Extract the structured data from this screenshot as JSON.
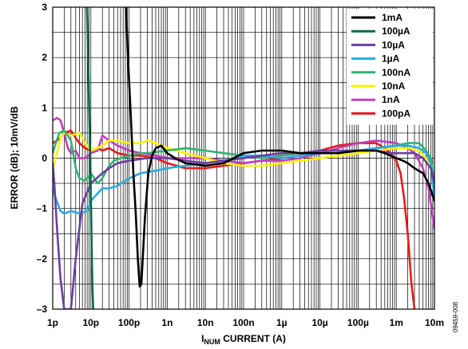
{
  "figure_id": "09459-008",
  "chart_data": {
    "type": "line",
    "xlabel": "I",
    "xlabel_sub": "NUM",
    "xlabel_rest": " CURRENT (A)",
    "ylabel": "ERROR (dB); 10mV/dB",
    "x_scale": "log",
    "xlim": [
      1e-12,
      0.01
    ],
    "ylim": [
      -3,
      3
    ],
    "x_ticks": [
      {
        "value": 1e-12,
        "label": "1p"
      },
      {
        "value": 1e-11,
        "label": "10p"
      },
      {
        "value": 1e-10,
        "label": "100p"
      },
      {
        "value": 1e-09,
        "label": "1n"
      },
      {
        "value": 1e-08,
        "label": "10n"
      },
      {
        "value": 1e-07,
        "label": "100n"
      },
      {
        "value": 1e-06,
        "label": "1µ"
      },
      {
        "value": 1e-05,
        "label": "10µ"
      },
      {
        "value": 0.0001,
        "label": "100µ"
      },
      {
        "value": 0.001,
        "label": "1m"
      },
      {
        "value": 0.01,
        "label": "10m"
      }
    ],
    "y_ticks": [
      {
        "value": 3,
        "label": "3"
      },
      {
        "value": 2,
        "label": "2"
      },
      {
        "value": 1,
        "label": "1"
      },
      {
        "value": 0,
        "label": "0"
      },
      {
        "value": -1,
        "label": "–1"
      },
      {
        "value": -2,
        "label": "–2"
      },
      {
        "value": -3,
        "label": "–3"
      }
    ],
    "grid": true,
    "legend_position": "top-right",
    "series": [
      {
        "name": "1mA",
        "color": "#000000",
        "x": [
          8.3e-11,
          9.5e-11,
          1.1e-10,
          1.3e-10,
          1.5e-10,
          1.7e-10,
          1.9e-10,
          2.1e-10,
          2.6e-10,
          3.2e-10,
          4e-10,
          5e-10,
          7e-10,
          1e-09,
          1.6e-09,
          3e-09,
          1e-08,
          3e-08,
          1e-07,
          3e-07,
          1e-06,
          3e-06,
          1e-05,
          3e-05,
          0.0001,
          0.0002,
          0.0003,
          0.0005,
          0.0007,
          0.001,
          0.0015,
          0.002,
          0.003,
          0.005,
          0.007,
          0.01
        ],
        "y": [
          3.0,
          1.9,
          0.9,
          -0.3,
          -1.1,
          -2.0,
          -2.55,
          -2.5,
          -1.2,
          -0.3,
          0.05,
          0.2,
          0.25,
          0.1,
          0.0,
          -0.1,
          -0.15,
          -0.1,
          0.1,
          0.15,
          0.15,
          0.1,
          0.1,
          0.1,
          0.15,
          0.15,
          0.15,
          0.1,
          0.05,
          0.0,
          -0.05,
          -0.1,
          -0.2,
          -0.3,
          -0.5,
          -0.85
        ]
      },
      {
        "name": "100µA",
        "color": "#006b3f",
        "x": [
          7.9e-12,
          8.5e-12,
          9e-12,
          9.6e-12,
          1.01e-11,
          1.06e-11,
          1.1e-11,
          1.15e-11
        ],
        "y": [
          3.0,
          2.0,
          1.0,
          0.0,
          -1.0,
          -2.0,
          -2.6,
          -3.0
        ]
      },
      {
        "name": "10µA",
        "color": "#6b3fa0",
        "x": [
          1e-12,
          1.1e-12,
          1.3e-12,
          1.6e-12,
          2e-12,
          3e-12,
          4e-12,
          6e-12,
          1e-11,
          2e-11,
          3e-11,
          5e-11,
          1e-10,
          3e-10,
          1e-09,
          3e-09,
          1e-08,
          3e-08,
          1e-07,
          3e-07,
          1e-06,
          3e-06,
          1e-05,
          3e-05,
          0.0001,
          0.0003,
          0.0007,
          0.001,
          0.002,
          0.003,
          0.005,
          0.008,
          0.01
        ],
        "y": [
          -0.1,
          -0.5,
          -1.4,
          -2.4,
          -3.0,
          -3.0,
          -2.0,
          -0.9,
          -0.5,
          -0.3,
          -0.2,
          -0.1,
          -0.05,
          0.0,
          0.0,
          -0.05,
          -0.1,
          -0.05,
          0.0,
          0.05,
          0.1,
          0.1,
          0.15,
          0.15,
          0.15,
          0.15,
          0.1,
          0.1,
          0.1,
          0.1,
          0.0,
          -0.2,
          -0.5
        ]
      },
      {
        "name": "1µA",
        "color": "#29abe2",
        "x": [
          1e-12,
          1.2e-12,
          1.6e-12,
          2e-12,
          3e-12,
          5e-12,
          8e-12,
          1e-11,
          1.5e-11,
          2e-11,
          3e-11,
          5e-11,
          1e-10,
          2e-10,
          5e-10,
          1e-09,
          3e-09,
          1e-08,
          3e-08,
          1e-07,
          3e-07,
          1e-06,
          3e-06,
          1e-05,
          3e-05,
          0.0001,
          0.0003,
          0.001,
          0.002,
          0.004,
          0.006,
          0.008,
          0.01
        ],
        "y": [
          -0.6,
          -0.8,
          -1.05,
          -1.1,
          -1.05,
          -1.1,
          -1.05,
          -0.85,
          -0.7,
          -0.6,
          -0.6,
          -0.55,
          -0.4,
          -0.3,
          -0.25,
          -0.2,
          -0.15,
          -0.1,
          -0.05,
          0.05,
          0.05,
          0.0,
          0.05,
          0.1,
          0.1,
          0.15,
          0.2,
          0.25,
          0.25,
          0.2,
          0.1,
          -0.1,
          -0.8
        ]
      },
      {
        "name": "100nA",
        "color": "#2bb673",
        "x": [
          1e-12,
          1.2e-12,
          1.5e-12,
          2e-12,
          3e-12,
          4e-12,
          5e-12,
          7e-12,
          1e-11,
          1.5e-11,
          2e-11,
          3e-11,
          4e-11,
          6e-11,
          1e-10,
          2e-10,
          3e-10,
          1e-09,
          3e-09,
          1e-08,
          3e-08,
          1e-07,
          3e-07,
          1e-06,
          3e-06,
          1e-05,
          3e-05,
          0.0001,
          0.0003,
          0.001,
          0.002,
          0.004,
          0.006,
          0.008,
          0.01
        ],
        "y": [
          0.1,
          0.3,
          0.5,
          0.55,
          0.35,
          -0.2,
          -0.4,
          -0.45,
          -0.3,
          -0.5,
          -0.4,
          -0.15,
          -0.05,
          0.0,
          0.05,
          0.1,
          0.1,
          0.15,
          0.2,
          0.15,
          0.1,
          0.05,
          0.0,
          0.05,
          0.1,
          0.1,
          0.1,
          0.15,
          0.2,
          0.25,
          0.3,
          0.3,
          0.15,
          0.0,
          -0.5
        ]
      },
      {
        "name": "10nA",
        "color": "#fff200",
        "x": [
          1e-12,
          1.3e-12,
          1.6e-12,
          2e-12,
          3e-12,
          5e-12,
          7e-12,
          1e-11,
          1.5e-11,
          2e-11,
          3e-11,
          5e-11,
          1e-10,
          2e-10,
          3e-10,
          5e-10,
          1e-09,
          3e-09,
          1e-08,
          3e-08,
          1e-07,
          3e-07,
          1e-06,
          3e-06,
          1e-05,
          3e-05,
          0.0001,
          0.0003,
          0.001,
          0.002,
          0.004,
          0.006,
          0.008,
          0.01
        ],
        "y": [
          -0.2,
          0.1,
          0.4,
          0.5,
          0.45,
          0.5,
          0.3,
          0.15,
          0.2,
          0.25,
          0.35,
          0.35,
          0.3,
          0.3,
          0.35,
          0.3,
          0.2,
          0.1,
          0.0,
          -0.1,
          -0.15,
          -0.15,
          -0.1,
          -0.05,
          0.0,
          0.05,
          0.1,
          0.15,
          0.2,
          0.2,
          0.15,
          0.0,
          -0.2,
          -0.45
        ]
      },
      {
        "name": "1nA",
        "color": "#c13fbf",
        "x": [
          1e-12,
          1.3e-12,
          1.6e-12,
          2e-12,
          2.5e-12,
          3e-12,
          4e-12,
          5e-12,
          7e-12,
          1e-11,
          1.5e-11,
          2e-11,
          3e-11,
          5e-11,
          1e-10,
          2e-10,
          5e-10,
          1e-09,
          3e-09,
          1e-08,
          3e-08,
          1e-07,
          3e-07,
          1e-06,
          3e-06,
          1e-05,
          3e-05,
          0.0001,
          0.0003,
          0.001,
          0.002,
          0.003,
          0.005,
          0.007,
          0.01
        ],
        "y": [
          0.75,
          0.8,
          0.75,
          0.5,
          0.2,
          0.1,
          0.15,
          0.0,
          0.0,
          0.1,
          0.15,
          0.45,
          0.35,
          0.25,
          0.15,
          0.1,
          0.05,
          0.0,
          0.0,
          0.0,
          -0.05,
          -0.1,
          -0.05,
          -0.05,
          0.0,
          0.1,
          0.2,
          0.3,
          0.35,
          0.3,
          0.2,
          0.1,
          -0.2,
          -0.6,
          -1.4
        ]
      },
      {
        "name": "100pA",
        "color": "#e51b1b",
        "x": [
          1e-12,
          1.3e-12,
          1.6e-12,
          2e-12,
          3e-12,
          4e-12,
          5e-12,
          7e-12,
          1e-11,
          1.5e-11,
          2e-11,
          3e-11,
          5e-11,
          1e-10,
          2e-10,
          5e-10,
          1e-09,
          3e-09,
          1e-08,
          3e-08,
          1e-07,
          3e-07,
          1e-06,
          3e-06,
          1e-05,
          3e-05,
          0.0001,
          0.0002,
          0.0003,
          0.0005,
          0.0007,
          0.001,
          0.0013,
          0.0016,
          0.002,
          0.0025,
          0.003
        ],
        "y": [
          0.3,
          0.35,
          0.4,
          0.5,
          0.55,
          0.4,
          0.3,
          0.2,
          0.15,
          0.2,
          0.15,
          0.2,
          0.1,
          0.05,
          0.05,
          0.0,
          -0.1,
          -0.2,
          -0.2,
          -0.15,
          -0.1,
          -0.05,
          0.0,
          0.05,
          0.15,
          0.25,
          0.3,
          0.3,
          0.3,
          0.2,
          0.1,
          -0.05,
          -0.3,
          -0.8,
          -1.5,
          -2.5,
          -3.0
        ]
      }
    ]
  }
}
